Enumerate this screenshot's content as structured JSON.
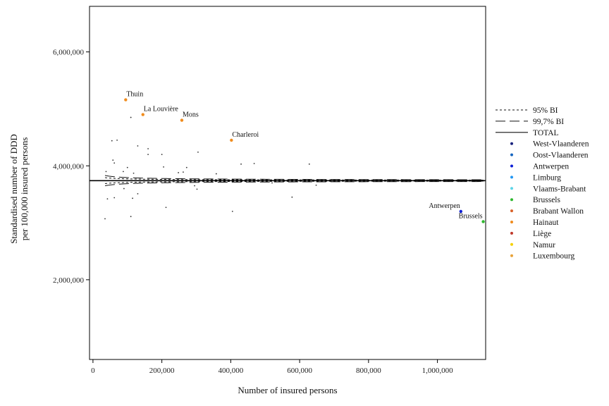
{
  "chart_data": {
    "type": "scatter",
    "title": "",
    "xlabel": "Number of insured persons",
    "ylabel": "Standardised number of DDD per 100,000 insured persons",
    "ylabel_lines": [
      "Standardised number of DDD",
      "per 100,000 insured persons"
    ],
    "xlim": [
      -10000,
      1140000
    ],
    "ylim": [
      600000,
      6800000
    ],
    "x_ticks": [
      0,
      200000,
      400000,
      600000,
      800000,
      1000000
    ],
    "x_tick_labels": [
      "0",
      "200,000",
      "400,000",
      "600,000",
      "800,000",
      "1,000,000"
    ],
    "y_ticks": [
      2000000,
      4000000,
      6000000
    ],
    "y_tick_labels": [
      "2,000,000",
      "4,000,000",
      "6,000,000"
    ],
    "grid": false,
    "legend_position": "right",
    "total": 3740000,
    "limit_series": [
      {
        "name": "95% BI",
        "style": "dotted",
        "k": 9800000
      },
      {
        "name": "99,7% BI",
        "style": "dashed",
        "k": 17000000
      }
    ],
    "total_series": {
      "name": "TOTAL",
      "style": "solid"
    },
    "province_legend": [
      {
        "name": "West-Vlaanderen",
        "color": "#1a237e"
      },
      {
        "name": "Oost-Vlaanderen",
        "color": "#1565c0"
      },
      {
        "name": "Antwerpen",
        "color": "#0d1fd6"
      },
      {
        "name": "Limburg",
        "color": "#2196f3"
      },
      {
        "name": "Vlaams-Brabant",
        "color": "#5dd5e8"
      },
      {
        "name": "Brussels",
        "color": "#2eb82e"
      },
      {
        "name": "Brabant Wallon",
        "color": "#d9622b"
      },
      {
        "name": "Hainaut",
        "color": "#f08c1e"
      },
      {
        "name": "Liège",
        "color": "#c0392b"
      },
      {
        "name": "Namur",
        "color": "#f5d000"
      },
      {
        "name": "Luxembourg",
        "color": "#e8a33a"
      }
    ],
    "labeled_points": [
      {
        "label": "Thuin",
        "x": 95000,
        "y": 5160000,
        "color": "#f08c1e",
        "anchor": "right-above"
      },
      {
        "label": "La Louvière",
        "x": 145000,
        "y": 4900000,
        "color": "#f08c1e",
        "anchor": "right-above"
      },
      {
        "label": "Mons",
        "x": 258000,
        "y": 4800000,
        "color": "#f08c1e",
        "anchor": "right-above"
      },
      {
        "label": "Charleroi",
        "x": 402000,
        "y": 4450000,
        "color": "#f08c1e",
        "anchor": "right-above"
      },
      {
        "label": "Antwerpen",
        "x": 1068000,
        "y": 3200000,
        "color": "#0d1fd6",
        "anchor": "left-above"
      },
      {
        "label": "Brussels",
        "x": 1133000,
        "y": 3020000,
        "color": "#2eb82e",
        "anchor": "left-above"
      }
    ],
    "points": [
      {
        "x": 55000,
        "y": 4440000
      },
      {
        "x": 70000,
        "y": 4450000
      },
      {
        "x": 58000,
        "y": 4100000
      },
      {
        "x": 62000,
        "y": 4050000
      },
      {
        "x": 130000,
        "y": 4350000
      },
      {
        "x": 160000,
        "y": 4300000
      },
      {
        "x": 160000,
        "y": 4200000
      },
      {
        "x": 200000,
        "y": 4200000
      },
      {
        "x": 305000,
        "y": 4240000
      },
      {
        "x": 110000,
        "y": 4850000
      },
      {
        "x": 38000,
        "y": 3900000
      },
      {
        "x": 88000,
        "y": 3900000
      },
      {
        "x": 100000,
        "y": 3970000
      },
      {
        "x": 118000,
        "y": 3870000
      },
      {
        "x": 205000,
        "y": 3980000
      },
      {
        "x": 248000,
        "y": 3880000
      },
      {
        "x": 262000,
        "y": 3890000
      },
      {
        "x": 272000,
        "y": 3970000
      },
      {
        "x": 322000,
        "y": 3760000
      },
      {
        "x": 358000,
        "y": 3860000
      },
      {
        "x": 430000,
        "y": 4030000
      },
      {
        "x": 468000,
        "y": 4040000
      },
      {
        "x": 628000,
        "y": 4030000
      },
      {
        "x": 520000,
        "y": 3700000
      },
      {
        "x": 648000,
        "y": 3660000
      },
      {
        "x": 90000,
        "y": 3600000
      },
      {
        "x": 42000,
        "y": 3420000
      },
      {
        "x": 62000,
        "y": 3440000
      },
      {
        "x": 115000,
        "y": 3430000
      },
      {
        "x": 130000,
        "y": 3510000
      },
      {
        "x": 295000,
        "y": 3650000
      },
      {
        "x": 302000,
        "y": 3590000
      },
      {
        "x": 578000,
        "y": 3450000
      },
      {
        "x": 35000,
        "y": 3070000
      },
      {
        "x": 110000,
        "y": 3110000
      },
      {
        "x": 212000,
        "y": 3270000
      },
      {
        "x": 405000,
        "y": 3200000
      }
    ]
  }
}
